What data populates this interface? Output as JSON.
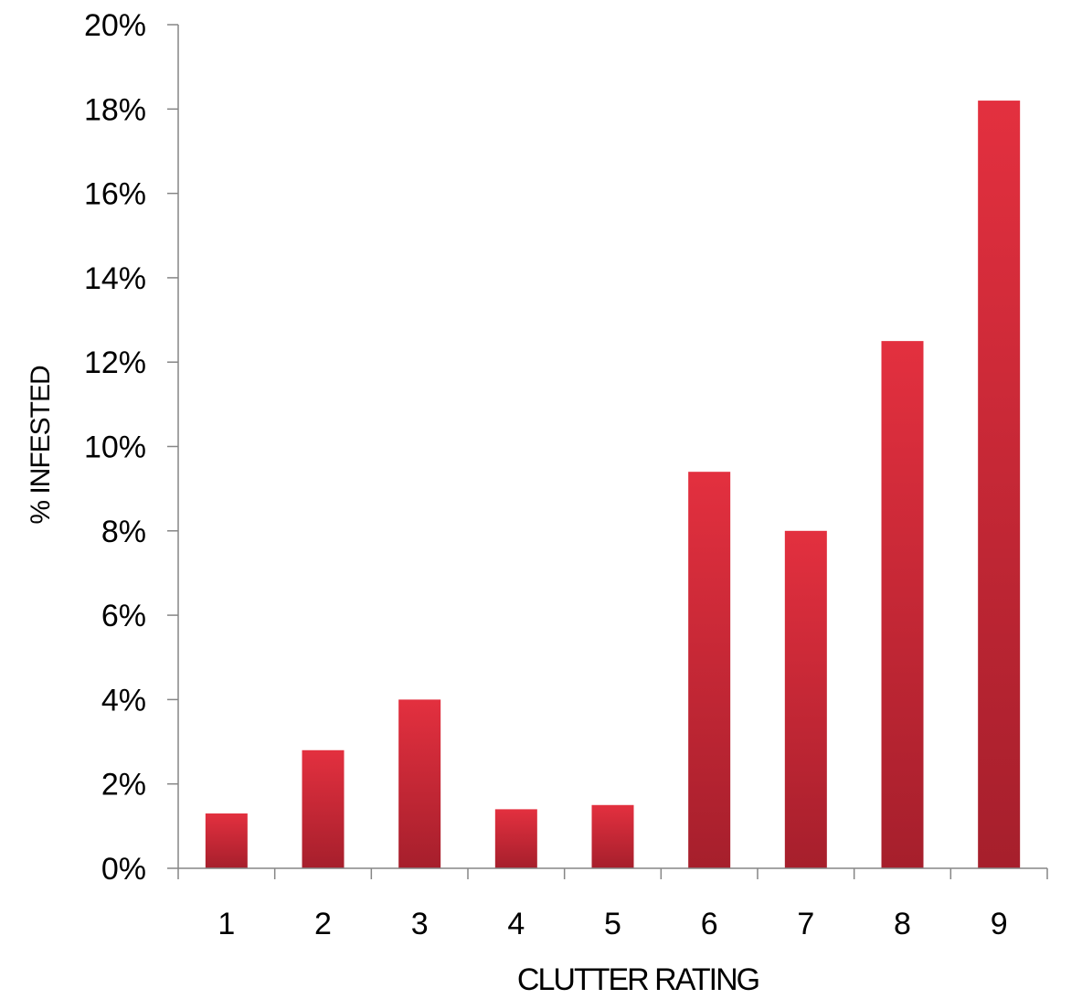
{
  "chart_data": {
    "type": "bar",
    "title": "",
    "xlabel": "CLUTTER RATING",
    "ylabel": "% INFESTED",
    "categories": [
      "1",
      "2",
      "3",
      "4",
      "5",
      "6",
      "7",
      "8",
      "9"
    ],
    "values": [
      1.3,
      2.8,
      4.0,
      1.4,
      1.5,
      9.4,
      8.0,
      12.5,
      18.2
    ],
    "ylim": [
      0,
      20
    ],
    "yticks": [
      "0%",
      "2%",
      "4%",
      "6%",
      "8%",
      "10%",
      "12%",
      "14%",
      "16%",
      "18%",
      "20%"
    ],
    "ytick_values": [
      0,
      2,
      4,
      6,
      8,
      10,
      12,
      14,
      16,
      18,
      20
    ],
    "grid": false,
    "legend": "none",
    "colors": {
      "bar_top": "#e3303f",
      "bar_bottom": "#a61f2c",
      "axis": "#868686"
    }
  }
}
